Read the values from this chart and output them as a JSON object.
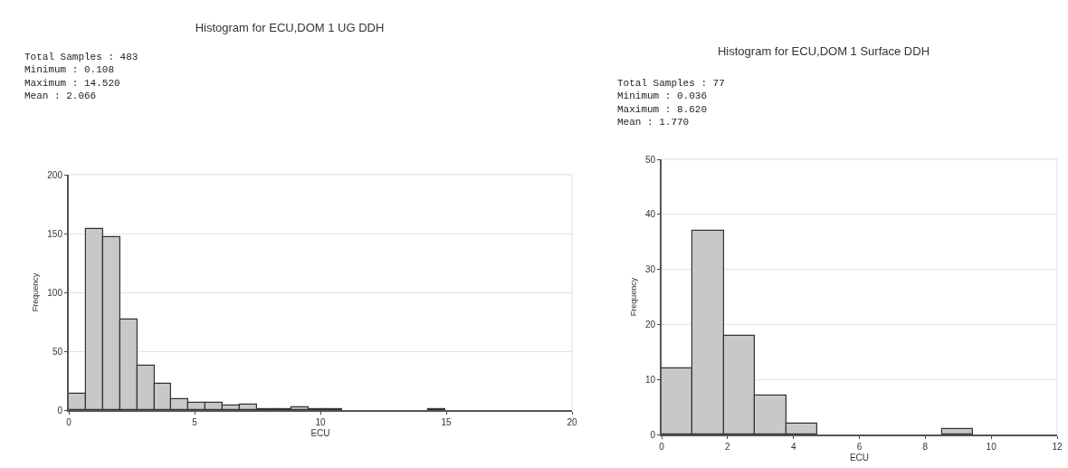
{
  "chart_data": [
    {
      "type": "histogram",
      "title": "Histogram for ECU,DOM 1 UG DDH",
      "xlabel": "ECU",
      "ylabel": "Frequency",
      "color": "#c8c8c8",
      "annotations": [
        "Total Samples : 483",
        "Minimum : 0.108",
        "Maximum : 14.520",
        "Mean : 2.066"
      ],
      "bins": [
        0,
        0.68,
        1.36,
        2.04,
        2.72,
        3.4,
        4.08,
        4.76,
        5.44,
        6.12,
        6.8,
        7.48,
        8.16,
        8.84,
        9.52,
        10.2,
        10.88,
        11.56,
        12.24,
        12.92,
        13.6,
        14.28,
        14.96
      ],
      "values": [
        14,
        154,
        147,
        77,
        38,
        22,
        9,
        6,
        6,
        4,
        5,
        1,
        1,
        2,
        1,
        1,
        0,
        0,
        0,
        0,
        0,
        1
      ],
      "xlim": [
        0,
        20
      ],
      "xticks": [
        0,
        5,
        10,
        15,
        20
      ],
      "ylim": [
        0,
        200
      ],
      "yticks": [
        0,
        50,
        100,
        150,
        200
      ],
      "grid": "y"
    },
    {
      "type": "histogram",
      "title": "Histogram for ECU,DOM 1 Surface DDH",
      "xlabel": "ECU",
      "ylabel": "Frequency",
      "color": "#c8c8c8",
      "annotations": [
        "Total Samples : 77",
        "Minimum : 0.036",
        "Maximum : 8.620",
        "Mean : 1.770"
      ],
      "bins": [
        0,
        0.945,
        1.89,
        2.835,
        3.78,
        4.725,
        5.67,
        6.615,
        7.56,
        8.505,
        9.45
      ],
      "values": [
        12,
        37,
        18,
        7,
        2,
        0,
        0,
        0,
        0,
        1
      ],
      "xlim": [
        0,
        12
      ],
      "xticks": [
        0,
        2,
        4,
        6,
        8,
        10,
        12
      ],
      "ylim": [
        0,
        50
      ],
      "yticks": [
        0,
        10,
        20,
        30,
        40,
        50
      ],
      "grid": "y"
    }
  ]
}
